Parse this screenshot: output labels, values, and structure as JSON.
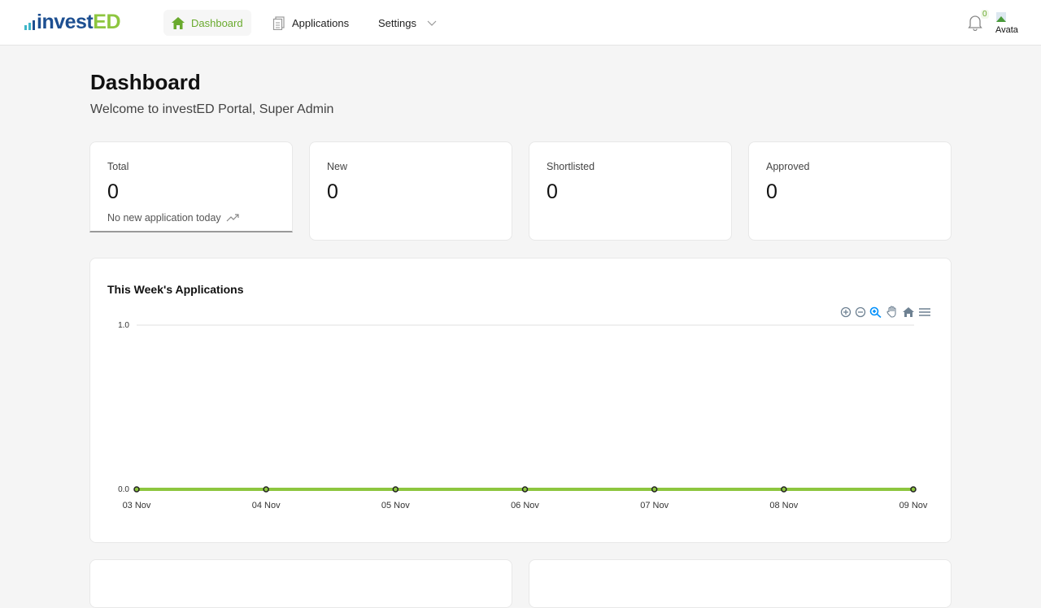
{
  "brand": {
    "logo_prefix": "invest",
    "logo_suffix": "ED",
    "colors": {
      "green": "#8dc63f",
      "blue": "#1d4f91"
    }
  },
  "nav": {
    "items": [
      {
        "label": "Dashboard",
        "icon": "home-icon",
        "active": true
      },
      {
        "label": "Applications",
        "icon": "clipboard-icon"
      },
      {
        "label": "Settings",
        "icon": "chevron-down-icon"
      }
    ],
    "notifications_count": "0",
    "avatar_alt": "Avatar"
  },
  "page": {
    "title": "Dashboard",
    "subtitle": "Welcome to investED Portal, Super Admin"
  },
  "stats": [
    {
      "label": "Total",
      "value": "0",
      "note": "No new application today"
    },
    {
      "label": "New",
      "value": "0"
    },
    {
      "label": "Shortlisted",
      "value": "0"
    },
    {
      "label": "Approved",
      "value": "0"
    }
  ],
  "chart_data": {
    "type": "line",
    "title": "This Week's Applications",
    "categories": [
      "03 Nov",
      "04 Nov",
      "05 Nov",
      "06 Nov",
      "07 Nov",
      "08 Nov",
      "09 Nov"
    ],
    "values": [
      0,
      0,
      0,
      0,
      0,
      0,
      0
    ],
    "ylim": [
      0,
      1
    ],
    "yticks": [
      "0.0",
      "1.0"
    ],
    "color": "#8dc63f",
    "grid": true,
    "toolbar": [
      "zoom-in-icon",
      "zoom-out-icon",
      "zoom-selection-icon",
      "pan-icon",
      "reset-home-icon",
      "menu-icon"
    ]
  }
}
